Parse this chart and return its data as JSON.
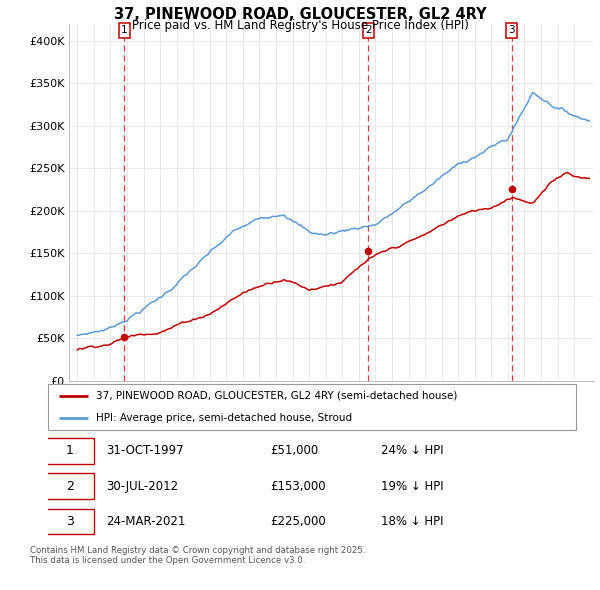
{
  "title": "37, PINEWOOD ROAD, GLOUCESTER, GL2 4RY",
  "subtitle": "Price paid vs. HM Land Registry's House Price Index (HPI)",
  "hpi_label": "HPI: Average price, semi-detached house, Stroud",
  "property_label": "37, PINEWOOD ROAD, GLOUCESTER, GL2 4RY (semi-detached house)",
  "sales": [
    {
      "date": "31-OCT-1997",
      "price": 51000,
      "label": "1",
      "x_year": 1997.83
    },
    {
      "date": "30-JUL-2012",
      "price": 153000,
      "label": "2",
      "x_year": 2012.58
    },
    {
      "date": "24-MAR-2021",
      "price": 225000,
      "label": "3",
      "x_year": 2021.23
    }
  ],
  "table_rows": [
    [
      "1",
      "31-OCT-1997",
      "£51,000",
      "24% ↓ HPI"
    ],
    [
      "2",
      "30-JUL-2012",
      "£153,000",
      "19% ↓ HPI"
    ],
    [
      "3",
      "24-MAR-2021",
      "£225,000",
      "18% ↓ HPI"
    ]
  ],
  "footer": "Contains HM Land Registry data © Crown copyright and database right 2025.\nThis data is licensed under the Open Government Licence v3.0.",
  "ylim": [
    0,
    420000
  ],
  "yticks": [
    0,
    50000,
    100000,
    150000,
    200000,
    250000,
    300000,
    350000,
    400000
  ],
  "ytick_labels": [
    "£0",
    "£50K",
    "£100K",
    "£150K",
    "£200K",
    "£250K",
    "£300K",
    "£350K",
    "£400K"
  ],
  "xlim_start": 1994.5,
  "xlim_end": 2026.2,
  "hpi_color": "#5b9bd5",
  "price_color": "#c00000",
  "vline_color": "#c00000",
  "grid_color": "#e0e0e0",
  "hpi_anchors_x": [
    1995.0,
    1997.0,
    2000.0,
    2002.0,
    2004.5,
    2007.5,
    2009.0,
    2010.0,
    2013.0,
    2015.0,
    2017.0,
    2019.0,
    2021.0,
    2022.5,
    2023.5,
    2024.5,
    2025.5
  ],
  "hpi_anchors_y": [
    52000,
    62000,
    100000,
    135000,
    175000,
    200000,
    178000,
    175000,
    190000,
    215000,
    245000,
    270000,
    290000,
    345000,
    335000,
    325000,
    318000
  ],
  "price_anchors_x": [
    1995.0,
    1997.0,
    1997.83,
    2000.0,
    2003.0,
    2005.0,
    2007.5,
    2009.0,
    2011.0,
    2012.58,
    2014.0,
    2016.0,
    2018.0,
    2020.0,
    2021.23,
    2022.5,
    2023.5,
    2024.5,
    2025.5
  ],
  "price_anchors_y": [
    36000,
    45000,
    51000,
    62000,
    85000,
    110000,
    130000,
    118000,
    130000,
    153000,
    163000,
    178000,
    200000,
    210000,
    225000,
    220000,
    240000,
    255000,
    250000
  ]
}
